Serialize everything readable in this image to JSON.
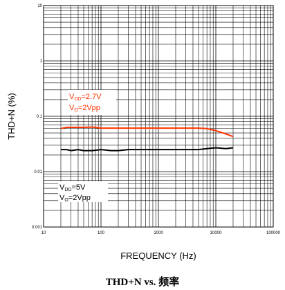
{
  "chart_data": {
    "type": "line",
    "title": "",
    "xlabel": "FREQUENCY (Hz)",
    "ylabel": "THD+N (%)",
    "xscale": "log",
    "yscale": "log",
    "xlim": [
      10,
      100000
    ],
    "ylim": [
      0.001,
      10
    ],
    "x_tick_labels": [
      "10",
      "100",
      "1000",
      "10000",
      "100000"
    ],
    "y_tick_labels": [
      "0.001",
      "0.01",
      "0.1",
      "1",
      "10"
    ],
    "grid": true,
    "series": [
      {
        "name": "VDD=2.7V VO=2Vpp",
        "color": "#ff3300",
        "x": [
          20,
          25,
          30,
          40,
          50,
          70,
          100,
          150,
          200,
          300,
          500,
          700,
          1000,
          2000,
          3000,
          5000,
          7000,
          10000,
          15000,
          20000
        ],
        "y": [
          0.06,
          0.063,
          0.063,
          0.063,
          0.063,
          0.064,
          0.061,
          0.061,
          0.061,
          0.061,
          0.061,
          0.061,
          0.061,
          0.061,
          0.061,
          0.061,
          0.06,
          0.055,
          0.048,
          0.043
        ]
      },
      {
        "name": "VDD=5V VO=2Vpp",
        "color": "#000000",
        "x": [
          20,
          25,
          30,
          40,
          50,
          70,
          100,
          150,
          200,
          300,
          500,
          700,
          1000,
          2000,
          3000,
          5000,
          7000,
          10000,
          15000,
          20000
        ],
        "y": [
          0.025,
          0.025,
          0.024,
          0.025,
          0.024,
          0.024,
          0.025,
          0.024,
          0.024,
          0.025,
          0.025,
          0.025,
          0.025,
          0.025,
          0.025,
          0.025,
          0.026,
          0.027,
          0.026,
          0.027
        ]
      }
    ],
    "annotations": {
      "red": {
        "line1_main": "V",
        "line1_sub": "DD",
        "line1_rest": "=2.7V",
        "line2_main": "V",
        "line2_sub": "O",
        "line2_rest": "=2Vpp"
      },
      "black": {
        "line1_main": "V",
        "line1_sub": "DD",
        "line1_rest": "=5V",
        "line2_main": "V",
        "line2_sub": "O",
        "line2_rest": "=2Vpp"
      }
    }
  },
  "caption": "THD+N vs.  频率"
}
